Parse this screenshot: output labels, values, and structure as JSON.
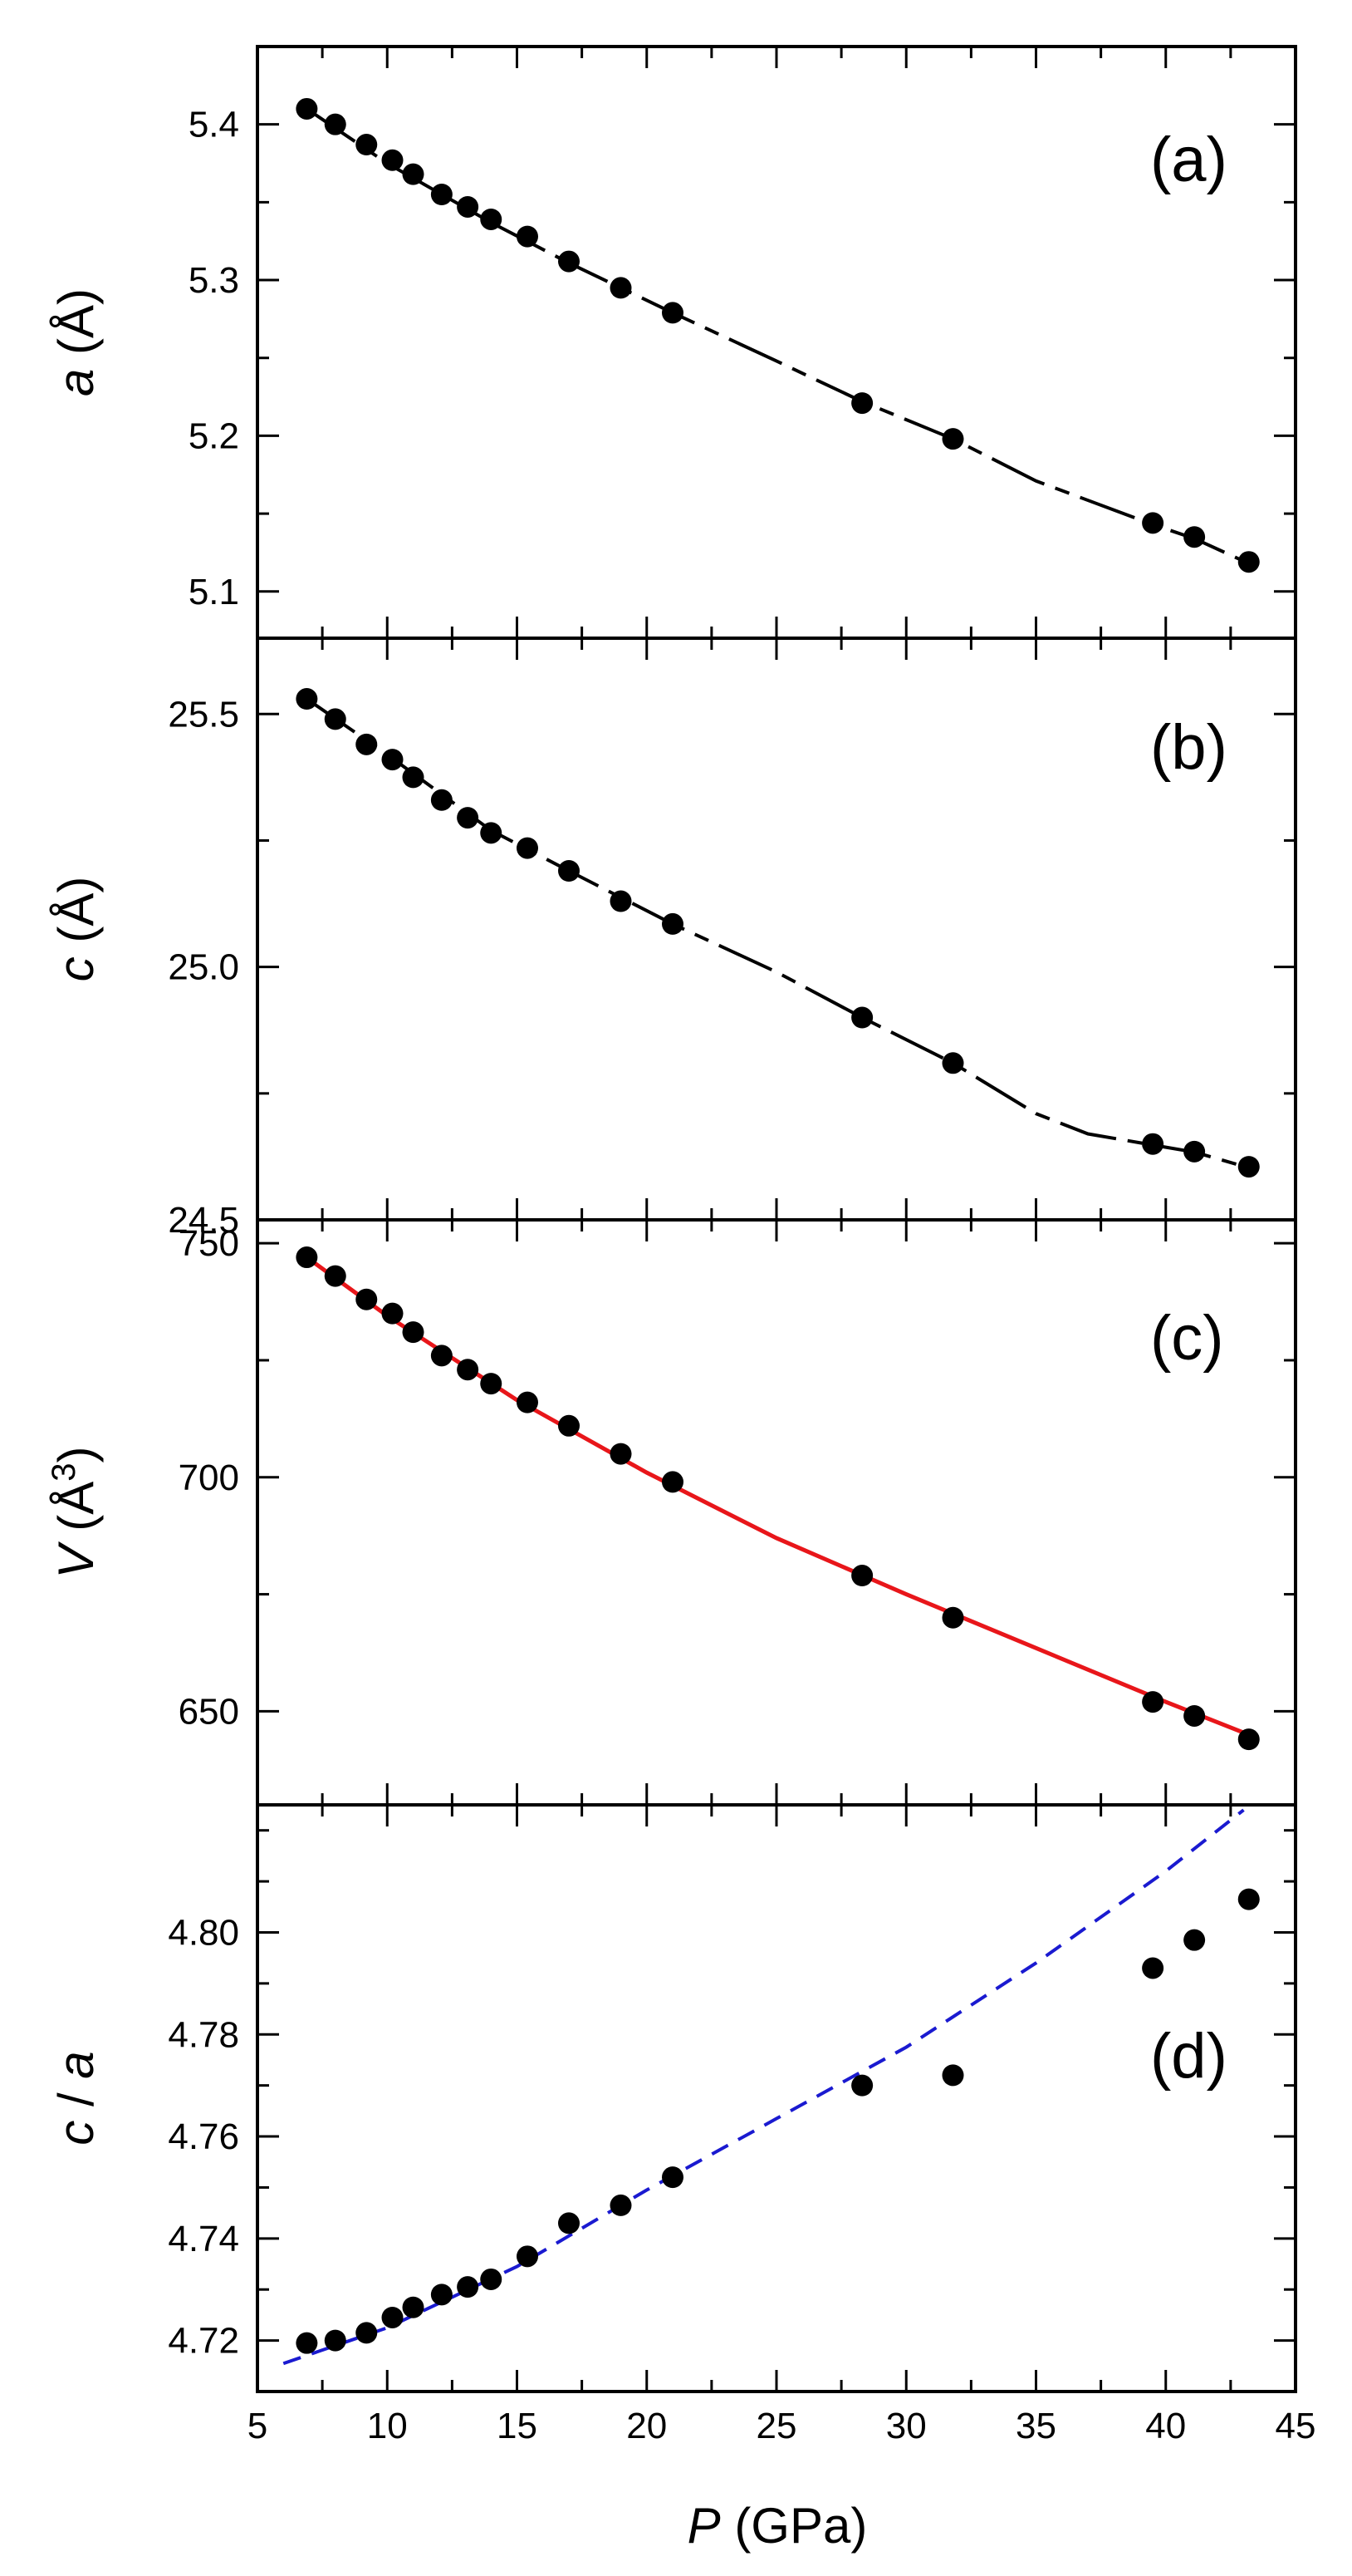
{
  "x_axis": {
    "label_italic": "P",
    "label_rest": " (GPa)",
    "ticks": [
      5,
      10,
      15,
      20,
      25,
      30,
      35,
      40,
      45
    ],
    "tick_labels": [
      "5",
      "10",
      "15",
      "20",
      "25",
      "30",
      "35",
      "40",
      "45"
    ],
    "xlim": [
      5,
      45
    ]
  },
  "pressures": [
    6.9,
    8.0,
    9.2,
    10.2,
    11.0,
    12.1,
    13.1,
    14.0,
    15.4,
    17.0,
    19.0,
    21.0,
    28.3,
    31.8,
    39.5,
    41.1,
    43.2
  ],
  "chart_data": [
    {
      "type": "scatter",
      "panel_label": "(a)",
      "ylabel_italic": "a",
      "ylabel_rest": " (Å)",
      "ylim": [
        5.07,
        5.45
      ],
      "yticks": [
        5.1,
        5.2,
        5.3,
        5.4
      ],
      "ytick_labels": [
        "5.1",
        "5.2",
        "5.3",
        "5.4"
      ],
      "x": [
        6.9,
        8.0,
        9.2,
        10.2,
        11.0,
        12.1,
        13.1,
        14.0,
        15.4,
        17.0,
        19.0,
        21.0,
        28.3,
        31.8,
        39.5,
        41.1,
        43.2
      ],
      "y": [
        5.41,
        5.4,
        5.387,
        5.377,
        5.368,
        5.355,
        5.347,
        5.339,
        5.328,
        5.312,
        5.295,
        5.279,
        5.221,
        5.198,
        5.144,
        5.135,
        5.119
      ],
      "line": {
        "style": "dashed-black",
        "x": [
          6.9,
          10,
          14,
          17,
          21,
          25,
          28.3,
          31.8,
          35,
          39.5,
          41.1,
          43.2
        ],
        "y": [
          5.41,
          5.375,
          5.337,
          5.311,
          5.279,
          5.248,
          5.222,
          5.198,
          5.171,
          5.143,
          5.134,
          5.118
        ]
      }
    },
    {
      "type": "scatter",
      "panel_label": "(b)",
      "ylabel_italic": "c",
      "ylabel_rest": " (Å)",
      "ylim": [
        24.5,
        25.65
      ],
      "yticks": [
        24.5,
        25.0,
        25.5
      ],
      "ytick_labels": [
        "24.5",
        "25.0",
        "25.5"
      ],
      "x": [
        6.9,
        8.0,
        9.2,
        10.2,
        11.0,
        12.1,
        13.1,
        14.0,
        15.4,
        17.0,
        19.0,
        21.0,
        28.3,
        31.8,
        39.5,
        41.1,
        43.2
      ],
      "y": [
        25.53,
        25.49,
        25.44,
        25.41,
        25.375,
        25.33,
        25.295,
        25.265,
        25.235,
        25.19,
        25.13,
        25.085,
        24.9,
        24.81,
        24.65,
        24.635,
        24.605
      ],
      "line": {
        "style": "dashed-black",
        "x": [
          6.9,
          10,
          14,
          17,
          21,
          25,
          28.3,
          31.8,
          35,
          37,
          39.5,
          41.1,
          43.2
        ],
        "y": [
          25.53,
          25.42,
          25.27,
          25.19,
          25.085,
          24.99,
          24.9,
          24.81,
          24.71,
          24.67,
          24.648,
          24.634,
          24.603
        ]
      }
    },
    {
      "type": "scatter",
      "panel_label": "(c)",
      "ylabel_italic": "V",
      "ylabel_rest": " (Å",
      "ylabel_sup": "3",
      "ylabel_close": ")",
      "ylim": [
        630,
        755
      ],
      "yticks": [
        650,
        700,
        750
      ],
      "ytick_labels": [
        "650",
        "700",
        "750"
      ],
      "x": [
        6.9,
        8.0,
        9.2,
        10.2,
        11.0,
        12.1,
        13.1,
        14.0,
        15.4,
        17.0,
        19.0,
        21.0,
        28.3,
        31.8,
        39.5,
        41.1,
        43.2
      ],
      "y": [
        747,
        743,
        738,
        735,
        731,
        726,
        723,
        720,
        716,
        711,
        705,
        699,
        679,
        670,
        652,
        649,
        644
      ],
      "line": {
        "style": "solid-red",
        "color": "#e8161a",
        "x": [
          6.9,
          10,
          15,
          20,
          25,
          30,
          35,
          40,
          43.2
        ],
        "y": [
          747,
          734.5,
          716.5,
          701,
          687,
          675,
          663.5,
          652,
          645
        ]
      }
    },
    {
      "type": "scatter",
      "panel_label": "(d)",
      "ylabel_italic": "c",
      "ylabel_rest": " / ",
      "ylabel_italic2": "a",
      "ylim": [
        4.71,
        4.825
      ],
      "yticks": [
        4.72,
        4.74,
        4.76,
        4.78,
        4.8
      ],
      "ytick_labels": [
        "4.72",
        "4.74",
        "4.76",
        "4.78",
        "4.80"
      ],
      "x": [
        6.9,
        8.0,
        9.2,
        10.2,
        11.0,
        12.1,
        13.1,
        14.0,
        15.4,
        17.0,
        19.0,
        21.0,
        28.3,
        31.8,
        39.5,
        41.1,
        43.2
      ],
      "y": [
        4.7195,
        4.72,
        4.7215,
        4.7245,
        4.7265,
        4.729,
        4.7305,
        4.732,
        4.7365,
        4.743,
        4.7465,
        4.752,
        4.77,
        4.772,
        4.793,
        4.7985,
        4.8065
      ],
      "line": {
        "style": "dashed-blue",
        "color": "#1a1ad0",
        "x": [
          6,
          10,
          15,
          20,
          25,
          30,
          35,
          40,
          43
        ],
        "y": [
          4.7155,
          4.7225,
          4.7345,
          4.7495,
          4.7635,
          4.7775,
          4.794,
          4.812,
          4.824
        ]
      }
    }
  ]
}
